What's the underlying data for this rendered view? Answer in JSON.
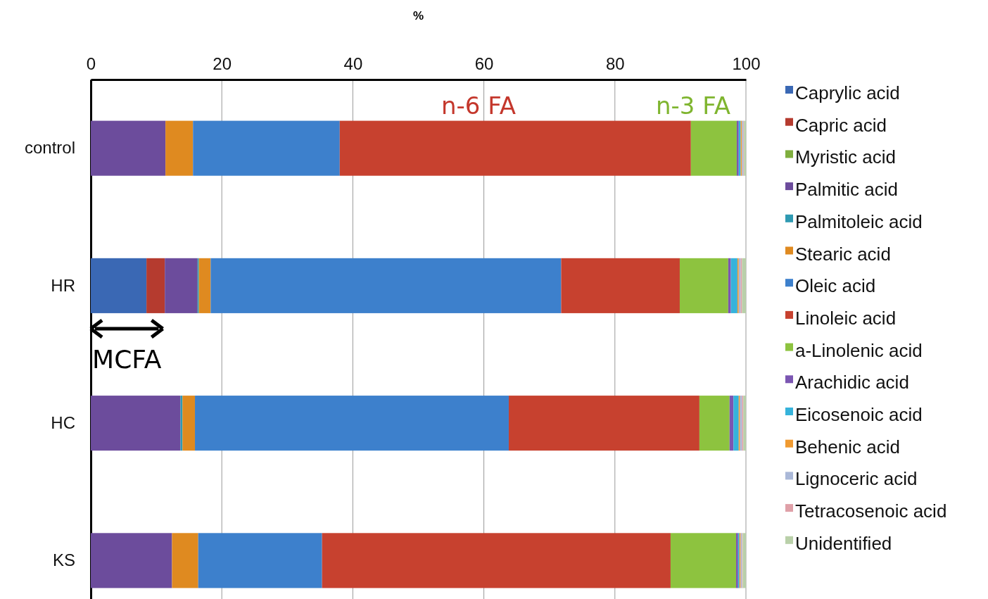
{
  "chart_data": {
    "type": "bar",
    "orientation": "horizontal",
    "stacked": true,
    "xlabel": "%",
    "categories": [
      "control",
      "HR",
      "HC",
      "KS"
    ],
    "xlim": [
      0,
      100
    ],
    "xticks": [
      0,
      20,
      40,
      60,
      80,
      100
    ],
    "grid": "x",
    "legend": "right",
    "annotations": [
      "n-6 FA",
      "n-3 FA",
      "MCFA"
    ],
    "series": [
      {
        "name": "Caprylic acid",
        "color": "#3a68b4",
        "values": [
          0,
          8.5,
          0,
          0
        ]
      },
      {
        "name": "Capric acid",
        "color": "#b53b2f",
        "values": [
          0,
          2.8,
          0,
          0
        ]
      },
      {
        "name": "Myristic acid",
        "color": "#7fae3e",
        "values": [
          0,
          0,
          0,
          0
        ]
      },
      {
        "name": "Palmitic acid",
        "color": "#6c4c9c",
        "values": [
          11.4,
          5.0,
          13.7,
          12.4
        ]
      },
      {
        "name": "Palmitoleic acid",
        "color": "#2f9ab2",
        "values": [
          0,
          0.2,
          0.3,
          0
        ]
      },
      {
        "name": "Stearic acid",
        "color": "#df8a20",
        "values": [
          4.2,
          1.8,
          1.9,
          4.0
        ]
      },
      {
        "name": "Oleic acid",
        "color": "#3d80cc",
        "values": [
          22.4,
          53.5,
          47.9,
          18.9
        ]
      },
      {
        "name": "Linoleic acid",
        "color": "#c7412f",
        "values": [
          53.6,
          18.1,
          29.1,
          53.2
        ]
      },
      {
        "name": "a-Linolenic acid",
        "color": "#8dc33f",
        "values": [
          7.0,
          7.4,
          4.6,
          10.0
        ]
      },
      {
        "name": "Arachidic acid",
        "color": "#7b56b2",
        "values": [
          0.3,
          0.4,
          0.6,
          0.3
        ]
      },
      {
        "name": "Eicosenoic acid",
        "color": "#36b3db",
        "values": [
          0.3,
          1.0,
          0.8,
          0.2
        ]
      },
      {
        "name": "Behenic acid",
        "color": "#f09a30",
        "values": [
          0.2,
          0.2,
          0.2,
          0.2
        ]
      },
      {
        "name": "Lignoceric acid",
        "color": "#aab8d8",
        "values": [
          0.2,
          0.3,
          0.3,
          0.2
        ]
      },
      {
        "name": "Tetracosenoic acid",
        "color": "#dfa0a8",
        "values": [
          0.1,
          0.2,
          0.2,
          0.1
        ]
      },
      {
        "name": "Unidentified",
        "color": "#b9d0a9",
        "values": [
          0.3,
          0.6,
          0.4,
          0.5
        ]
      }
    ]
  }
}
